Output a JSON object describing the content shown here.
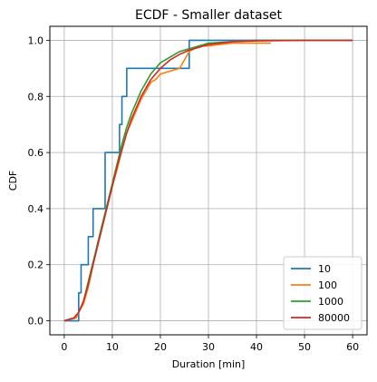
{
  "chart_data": {
    "type": "line",
    "title": "ECDF - Smaller dataset",
    "xlabel": "Duration [min]",
    "ylabel": "CDF",
    "xlim": [
      -3,
      63
    ],
    "ylim": [
      -0.05,
      1.05
    ],
    "xticks": [
      0,
      10,
      20,
      30,
      40,
      50,
      60
    ],
    "yticks": [
      0.0,
      0.2,
      0.4,
      0.6,
      0.8,
      1.0
    ],
    "grid": true,
    "legend_position": "bottom-right",
    "series": [
      {
        "name": "10",
        "color": "#1f77b4",
        "step": true,
        "points": [
          [
            0,
            0
          ],
          [
            3,
            0
          ],
          [
            3,
            0.1
          ],
          [
            3.5,
            0.1
          ],
          [
            3.5,
            0.2
          ],
          [
            5,
            0.2
          ],
          [
            5,
            0.3
          ],
          [
            6,
            0.3
          ],
          [
            6,
            0.4
          ],
          [
            8.5,
            0.4
          ],
          [
            8.5,
            0.6
          ],
          [
            11.5,
            0.6
          ],
          [
            11.5,
            0.7
          ],
          [
            12,
            0.7
          ],
          [
            12,
            0.8
          ],
          [
            13,
            0.8
          ],
          [
            13,
            0.9
          ],
          [
            26,
            0.9
          ],
          [
            26,
            1.0
          ],
          [
            60,
            1.0
          ]
        ]
      },
      {
        "name": "100",
        "color": "#ff7f0e",
        "points": [
          [
            0,
            0
          ],
          [
            2.5,
            0.01
          ],
          [
            3,
            0.03
          ],
          [
            4,
            0.06
          ],
          [
            5,
            0.12
          ],
          [
            6,
            0.2
          ],
          [
            7,
            0.28
          ],
          [
            8,
            0.35
          ],
          [
            9,
            0.41
          ],
          [
            10,
            0.48
          ],
          [
            11,
            0.54
          ],
          [
            12,
            0.61
          ],
          [
            13,
            0.67
          ],
          [
            14,
            0.71
          ],
          [
            15,
            0.75
          ],
          [
            16,
            0.79
          ],
          [
            17,
            0.82
          ],
          [
            18,
            0.85
          ],
          [
            19,
            0.86
          ],
          [
            20,
            0.88
          ],
          [
            22,
            0.89
          ],
          [
            24,
            0.9
          ],
          [
            25,
            0.93
          ],
          [
            26,
            0.96
          ],
          [
            28,
            0.98
          ],
          [
            30,
            0.98
          ],
          [
            35,
            0.99
          ],
          [
            43,
            0.99
          ]
        ]
      },
      {
        "name": "1000",
        "color": "#2ca02c",
        "points": [
          [
            0,
            0
          ],
          [
            2,
            0.01
          ],
          [
            3,
            0.03
          ],
          [
            4,
            0.07
          ],
          [
            5,
            0.14
          ],
          [
            6,
            0.21
          ],
          [
            7,
            0.28
          ],
          [
            8,
            0.35
          ],
          [
            9,
            0.42
          ],
          [
            10,
            0.49
          ],
          [
            11,
            0.56
          ],
          [
            12,
            0.63
          ],
          [
            13,
            0.69
          ],
          [
            14,
            0.74
          ],
          [
            15,
            0.78
          ],
          [
            16,
            0.82
          ],
          [
            17,
            0.85
          ],
          [
            18,
            0.88
          ],
          [
            19,
            0.9
          ],
          [
            20,
            0.92
          ],
          [
            22,
            0.94
          ],
          [
            24,
            0.96
          ],
          [
            26,
            0.97
          ],
          [
            28,
            0.98
          ],
          [
            30,
            0.99
          ],
          [
            35,
            0.995
          ],
          [
            40,
            1.0
          ],
          [
            60,
            1.0
          ]
        ]
      },
      {
        "name": "80000",
        "color": "#d62728",
        "points": [
          [
            0,
            0
          ],
          [
            2,
            0.01
          ],
          [
            3,
            0.03
          ],
          [
            4,
            0.07
          ],
          [
            5,
            0.13
          ],
          [
            6,
            0.2
          ],
          [
            7,
            0.27
          ],
          [
            8,
            0.34
          ],
          [
            9,
            0.41
          ],
          [
            10,
            0.48
          ],
          [
            11,
            0.55
          ],
          [
            12,
            0.61
          ],
          [
            13,
            0.67
          ],
          [
            14,
            0.72
          ],
          [
            15,
            0.76
          ],
          [
            16,
            0.8
          ],
          [
            17,
            0.83
          ],
          [
            18,
            0.86
          ],
          [
            19,
            0.88
          ],
          [
            20,
            0.9
          ],
          [
            22,
            0.93
          ],
          [
            24,
            0.95
          ],
          [
            26,
            0.965
          ],
          [
            28,
            0.975
          ],
          [
            30,
            0.985
          ],
          [
            35,
            0.995
          ],
          [
            40,
            0.998
          ],
          [
            50,
            1.0
          ],
          [
            60,
            1.0
          ]
        ]
      }
    ]
  }
}
